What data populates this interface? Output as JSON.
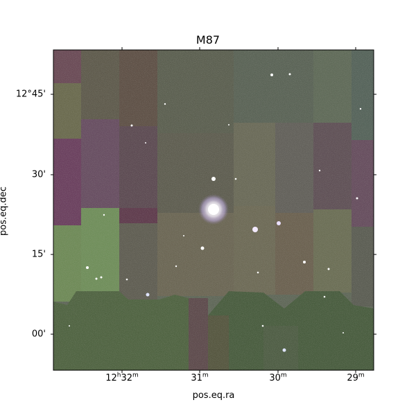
{
  "title": "M87",
  "x_axis": {
    "label": "pos.eq.ra",
    "ticks": [
      {
        "h": "12",
        "h_unit": "h",
        "m": "32",
        "m_unit": "m"
      },
      {
        "m": "31",
        "m_unit": "m"
      },
      {
        "m": "30",
        "m_unit": "m"
      },
      {
        "m": "29",
        "m_unit": "m"
      }
    ]
  },
  "y_axis": {
    "label": "pos.eq.dec",
    "ticks": [
      "12°45'",
      "30'",
      "15'",
      "00'"
    ]
  },
  "image": {
    "description_colors": {
      "base": "#5e6656",
      "green_tile": "#6f8a57",
      "purple_tile": "#6a3f5a",
      "dark_green": "#4a5e3c",
      "galaxy_core": "#ffffff",
      "galaxy_halo": "#d9c4ff"
    }
  }
}
